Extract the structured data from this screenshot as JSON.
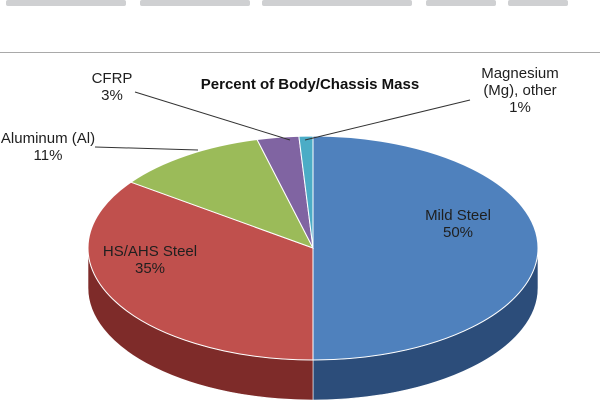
{
  "chart_data": {
    "type": "pie",
    "title": "Percent of Body/Chassis Mass",
    "slices": [
      {
        "name": "Mild Steel",
        "value": 50,
        "label_lines": [
          "Mild Steel",
          "50%"
        ],
        "color": "#4f81bd",
        "side": "#2c4d7a"
      },
      {
        "name": "HS/AHS Steel",
        "value": 35,
        "label_lines": [
          "HS/AHS Steel",
          "35%"
        ],
        "color": "#c0504d",
        "side": "#7e2b29"
      },
      {
        "name": "Aluminum (Al)",
        "value": 11,
        "label_lines": [
          "Aluminum (Al)",
          "11%"
        ],
        "color": "#9bbb59",
        "side": "#5f7a2e"
      },
      {
        "name": "CFRP",
        "value": 3,
        "label_lines": [
          "CFRP",
          "3%"
        ],
        "color": "#8064a2",
        "side": "#4b3767"
      },
      {
        "name": "Magnesium (Mg), other",
        "value": 1,
        "label_lines": [
          "Magnesium",
          "(Mg), other",
          "1%"
        ],
        "color": "#4bacc6",
        "side": "#2a6e80"
      }
    ],
    "legend": "none",
    "style": "3d-pie"
  }
}
